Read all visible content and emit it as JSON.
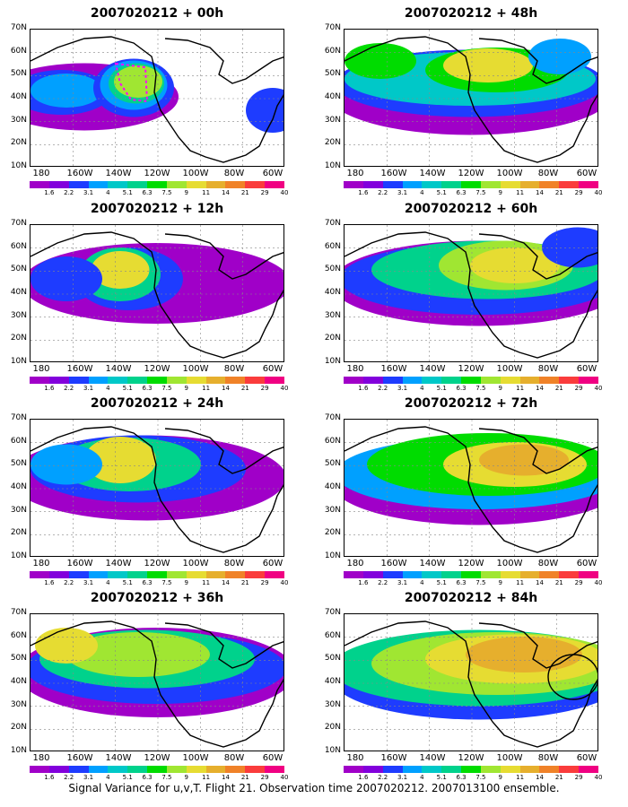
{
  "panels": [
    {
      "title": "2007020212 + 00h"
    },
    {
      "title": "2007020212 + 48h"
    },
    {
      "title": "2007020212 + 12h"
    },
    {
      "title": "2007020212 + 60h"
    },
    {
      "title": "2007020212 + 24h"
    },
    {
      "title": "2007020212 + 72h"
    },
    {
      "title": "2007020212 + 36h"
    },
    {
      "title": "2007020212 + 84h"
    }
  ],
  "lat_labels": [
    "70N",
    "60N",
    "50N",
    "40N",
    "30N",
    "20N",
    "10N"
  ],
  "lon_labels": [
    "180",
    "160W",
    "140W",
    "120W",
    "100W",
    "80W",
    "60W"
  ],
  "colorbar": {
    "colors": [
      "#a000c8",
      "#8200dc",
      "#1e3cff",
      "#00a0ff",
      "#00c8c8",
      "#00d28c",
      "#00dc00",
      "#a0e632",
      "#e6dc32",
      "#e6af2d",
      "#f08228",
      "#fa3c3c",
      "#f00082"
    ],
    "labels": [
      "1.6",
      "2.2",
      "3.1",
      "4",
      "5.1",
      "6.3",
      "7.5",
      "9",
      "11",
      "14",
      "21",
      "29",
      "40"
    ]
  },
  "caption": "Signal Variance for u,v,T. Flight 21. Observation time 2007020212. 2007013100 ensemble."
}
